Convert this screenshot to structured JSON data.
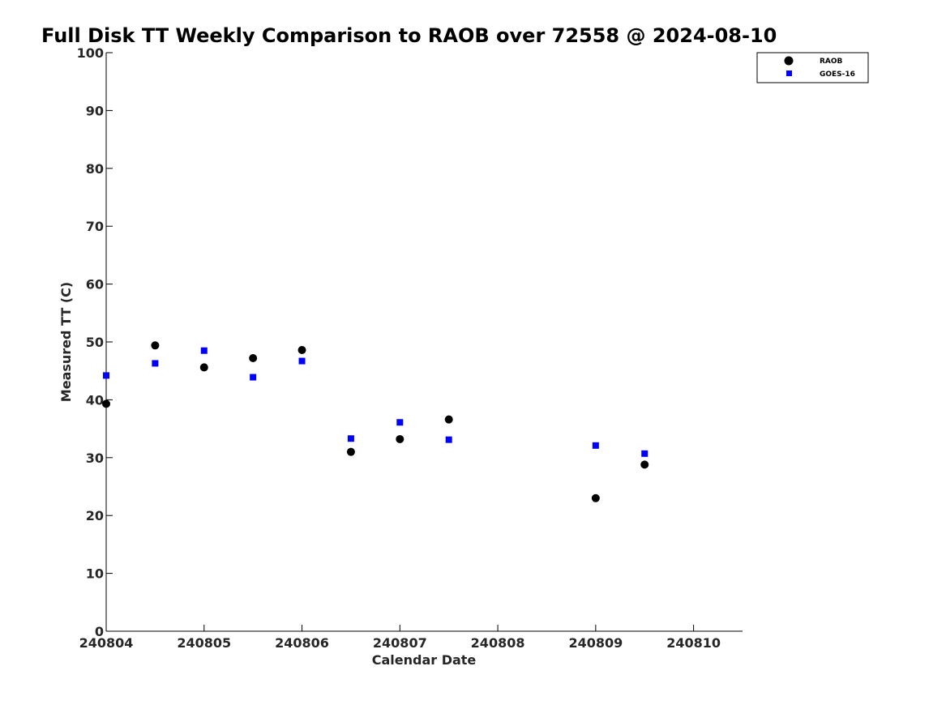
{
  "chart_data": {
    "type": "scatter",
    "title": "Full Disk TT Weekly Comparison to RAOB over 72558 @ 2024-08-10",
    "xlabel": "Calendar Date",
    "ylabel": "Measured TT (C)",
    "xlim": [
      240804,
      240810.5
    ],
    "ylim": [
      0,
      100
    ],
    "xticks": [
      240804,
      240805,
      240806,
      240807,
      240808,
      240809,
      240810
    ],
    "xtick_labels": [
      "240804",
      "240805",
      "240806",
      "240807",
      "240808",
      "240809",
      "240810"
    ],
    "yticks": [
      0,
      10,
      20,
      30,
      40,
      50,
      60,
      70,
      80,
      90,
      100
    ],
    "ytick_labels": [
      "0",
      "10",
      "20",
      "30",
      "40",
      "50",
      "60",
      "70",
      "80",
      "90",
      "100"
    ],
    "grid": false,
    "legend_position": "top-right",
    "series": [
      {
        "name": "RAOB",
        "marker": "circle",
        "color": "#000000",
        "x": [
          240804,
          240804.5,
          240805,
          240805.5,
          240806,
          240806.5,
          240807,
          240807.5,
          240809,
          240809.5
        ],
        "y": [
          39.3,
          49.4,
          45.6,
          47.2,
          48.6,
          31.0,
          33.2,
          36.6,
          23.0,
          28.8
        ]
      },
      {
        "name": "GOES-16",
        "marker": "square",
        "color": "#0000ff",
        "x": [
          240804,
          240804.5,
          240805,
          240805.5,
          240806,
          240806.5,
          240807,
          240807.5,
          240809,
          240809.5
        ],
        "y": [
          44.2,
          46.3,
          48.5,
          43.9,
          46.7,
          33.3,
          36.1,
          33.1,
          32.1,
          30.7
        ]
      }
    ]
  }
}
